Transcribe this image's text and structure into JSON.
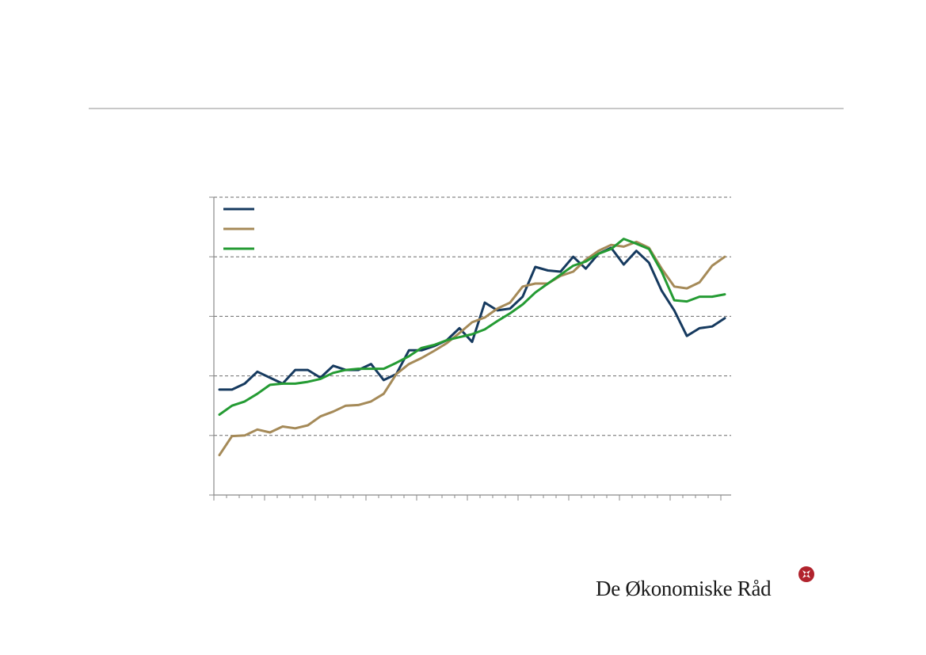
{
  "brand": {
    "text": "De Økonomiske Råd",
    "logo_color": "#b1232d"
  },
  "chart_data": {
    "type": "line",
    "title": "",
    "xlabel": "",
    "ylabel": "",
    "grid": true,
    "grid_style": "dashed",
    "legend_position": "top-left",
    "ylim": [
      0,
      5
    ],
    "y_gridlines": [
      1,
      2,
      3,
      4,
      5
    ],
    "n_points": 41,
    "x": [
      0,
      1,
      2,
      3,
      4,
      5,
      6,
      7,
      8,
      9,
      10,
      11,
      12,
      13,
      14,
      15,
      16,
      17,
      18,
      19,
      20,
      21,
      22,
      23,
      24,
      25,
      26,
      27,
      28,
      29,
      30,
      31,
      32,
      33,
      34,
      35,
      36,
      37,
      38,
      39,
      40
    ],
    "series": [
      {
        "color": "#163a5f",
        "values": [
          1.77,
          1.77,
          1.87,
          2.07,
          1.97,
          1.87,
          2.1,
          2.1,
          1.97,
          2.17,
          2.1,
          2.1,
          2.2,
          1.93,
          2.03,
          2.43,
          2.43,
          2.5,
          2.6,
          2.8,
          2.57,
          3.23,
          3.1,
          3.13,
          3.33,
          3.83,
          3.77,
          3.75,
          4.0,
          3.8,
          4.05,
          4.15,
          3.87,
          4.1,
          3.9,
          3.43,
          3.1,
          2.67,
          2.8,
          2.83,
          2.97
        ]
      },
      {
        "color": "#a58a58",
        "values": [
          0.67,
          0.99,
          1.0,
          1.1,
          1.05,
          1.15,
          1.12,
          1.17,
          1.32,
          1.4,
          1.5,
          1.51,
          1.57,
          1.7,
          2.03,
          2.2,
          2.3,
          2.42,
          2.55,
          2.72,
          2.9,
          2.98,
          3.13,
          3.23,
          3.5,
          3.55,
          3.55,
          3.68,
          3.75,
          3.95,
          4.1,
          4.2,
          4.17,
          4.25,
          4.15,
          3.8,
          3.5,
          3.47,
          3.57,
          3.85,
          4.0
        ]
      },
      {
        "color": "#249b33",
        "values": [
          1.35,
          1.5,
          1.57,
          1.7,
          1.85,
          1.87,
          1.87,
          1.9,
          1.95,
          2.05,
          2.1,
          2.12,
          2.12,
          2.12,
          2.22,
          2.33,
          2.47,
          2.52,
          2.6,
          2.65,
          2.7,
          2.78,
          2.92,
          3.05,
          3.2,
          3.4,
          3.55,
          3.7,
          3.85,
          3.92,
          4.05,
          4.13,
          4.3,
          4.22,
          4.13,
          3.75,
          3.27,
          3.25,
          3.33,
          3.33,
          3.37
        ]
      }
    ]
  }
}
